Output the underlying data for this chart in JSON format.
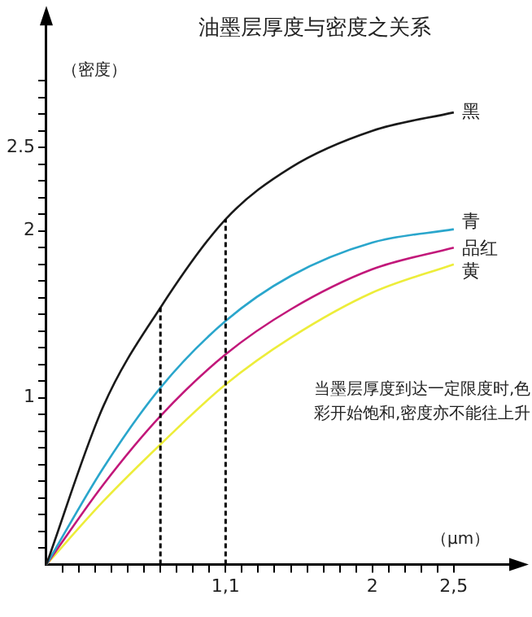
{
  "chart_data": {
    "type": "line",
    "title": "油墨层厚度与密度之关系",
    "xlabel": "（μm）",
    "ylabel": "（密度）",
    "xlim": [
      0,
      2.9
    ],
    "ylim": [
      0,
      3.3
    ],
    "xticks": [
      {
        "value": 0.1,
        "label": null
      },
      {
        "value": 0.2,
        "label": null
      },
      {
        "value": 0.3,
        "label": null
      },
      {
        "value": 0.4,
        "label": null
      },
      {
        "value": 0.5,
        "label": null
      },
      {
        "value": 0.6,
        "label": null
      },
      {
        "value": 0.7,
        "label": null
      },
      {
        "value": 0.8,
        "label": null
      },
      {
        "value": 0.9,
        "label": null
      },
      {
        "value": 1,
        "label": null
      },
      {
        "value": 1.1,
        "label": "1,1"
      },
      {
        "value": 1.2,
        "label": null
      },
      {
        "value": 1.3,
        "label": null
      },
      {
        "value": 1.4,
        "label": null
      },
      {
        "value": 1.5,
        "label": null
      },
      {
        "value": 1.6,
        "label": null
      },
      {
        "value": 1.7,
        "label": null
      },
      {
        "value": 1.8,
        "label": null
      },
      {
        "value": 1.9,
        "label": null
      },
      2,
      {
        "value": 2.1,
        "label": null
      },
      {
        "value": 2.2,
        "label": null
      },
      {
        "value": 2.3,
        "label": null
      },
      {
        "value": 2.4,
        "label": null
      },
      {
        "value": 2.5,
        "label": "2,5"
      }
    ],
    "yticks": [
      {
        "value": 0.1,
        "label": null
      },
      {
        "value": 0.2,
        "label": null
      },
      {
        "value": 0.3,
        "label": null
      },
      {
        "value": 0.4,
        "label": null
      },
      {
        "value": 0.5,
        "label": null
      },
      {
        "value": 0.6,
        "label": null
      },
      {
        "value": 0.7,
        "label": null
      },
      {
        "value": 0.8,
        "label": null
      },
      {
        "value": 0.9,
        "label": null
      },
      1,
      {
        "value": 1.1,
        "label": null
      },
      {
        "value": 1.2,
        "label": null
      },
      {
        "value": 1.3,
        "label": null
      },
      {
        "value": 1.4,
        "label": null
      },
      {
        "value": 1.5,
        "label": null
      },
      {
        "value": 1.6,
        "label": null
      },
      {
        "value": 1.7,
        "label": null
      },
      {
        "value": 1.8,
        "label": null
      },
      {
        "value": 1.9,
        "label": null
      },
      2,
      {
        "value": 2.1,
        "label": null
      },
      {
        "value": 2.2,
        "label": null
      },
      {
        "value": 2.3,
        "label": null
      },
      {
        "value": 2.4,
        "label": null
      },
      2.5,
      {
        "value": 2.6,
        "label": null
      },
      {
        "value": 2.7,
        "label": null
      },
      {
        "value": 2.8,
        "label": null
      },
      {
        "value": 2.9,
        "label": null
      }
    ],
    "x": [
      0,
      0.35,
      0.7,
      1.1,
      1.5,
      2,
      2.5
    ],
    "series": [
      {
        "name": "黑",
        "color": "#1a1a1a",
        "values": [
          0,
          0.95,
          1.54,
          2.07,
          2.38,
          2.6,
          2.71
        ]
      },
      {
        "name": "青",
        "color": "#2aa6cc",
        "values": [
          0,
          0.58,
          1.06,
          1.46,
          1.73,
          1.93,
          2.01
        ]
      },
      {
        "name": "品红",
        "color": "#c2187a",
        "values": [
          0,
          0.48,
          0.89,
          1.26,
          1.53,
          1.77,
          1.9
        ]
      },
      {
        "name": "黄",
        "color": "#eded3a",
        "values": [
          0,
          0.38,
          0.72,
          1.08,
          1.36,
          1.63,
          1.8
        ]
      }
    ],
    "ref_lines": [
      {
        "axis": "x",
        "value": 0.7,
        "label": null,
        "color": "#000000",
        "line_style": "dashed"
      },
      {
        "axis": "x",
        "value": 1.1,
        "label": null,
        "color": "#000000",
        "line_style": "dashed"
      }
    ],
    "annotations": [
      "当墨层厚度到达一定限度时,色彩开始饱和,密度亦不能往上升"
    ],
    "grid": false,
    "legend": false,
    "marker": "none",
    "line_style": "solid"
  }
}
